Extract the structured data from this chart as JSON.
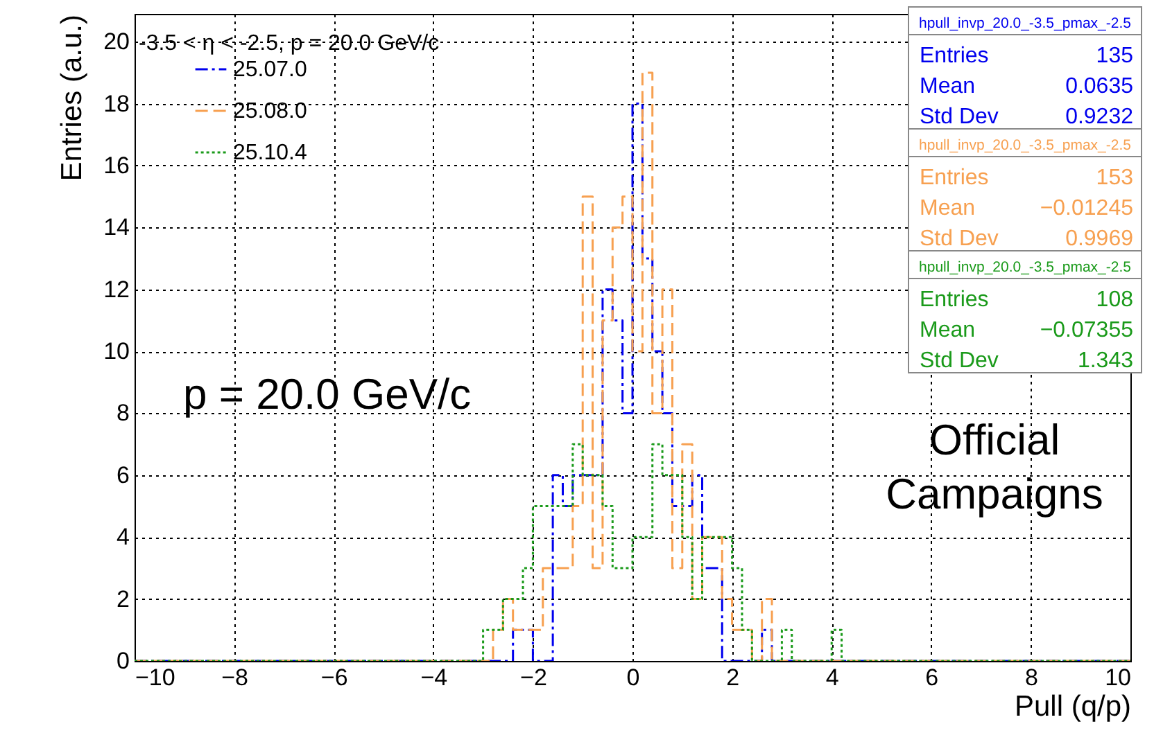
{
  "chart_data": {
    "type": "histogram",
    "title": "-3.5 < η < -2.5, p = 20.0 GeV/c",
    "xlabel": "Pull (q/p)",
    "ylabel": "Entries (a.u.)",
    "bins": [
      -10,
      -9.8,
      -9.6,
      -9.4,
      -9.2,
      -9,
      -8.8,
      -8.6,
      -8.4,
      -8.2,
      -8,
      -7.8,
      -7.6,
      -7.4,
      -7.2,
      -7,
      -6.8,
      -6.6,
      -6.4,
      -6.2,
      -6,
      -5.8,
      -5.6,
      -5.4,
      -5.2,
      -5,
      -4.8,
      -4.6,
      -4.4,
      -4.2,
      -4,
      -3.8,
      -3.6,
      -3.4,
      -3.2,
      -3,
      -2.8,
      -2.6,
      -2.4,
      -2.2,
      -2,
      -1.8,
      -1.6,
      -1.4,
      -1.2,
      -1,
      -0.8,
      -0.6,
      -0.4,
      -0.2,
      0,
      0.2,
      0.4,
      0.6,
      0.8,
      1,
      1.2,
      1.4,
      1.6,
      1.8,
      2,
      2.2,
      2.4,
      2.6,
      2.8,
      3,
      3.2,
      3.4,
      3.6,
      3.8,
      4,
      4.2,
      4.4,
      4.6,
      4.8,
      5,
      5.2,
      5.4,
      5.6,
      5.8,
      6,
      6.2,
      6.4,
      6.6,
      6.8,
      7,
      7.2,
      7.4,
      7.6,
      7.8,
      8,
      8.2,
      8.4,
      8.6,
      8.8,
      9,
      9.2,
      9.4,
      9.6,
      9.8,
      10
    ],
    "series": [
      {
        "name": "25.07.0",
        "color": "#0000ee",
        "line_style": "dashdot",
        "values": [
          0,
          0,
          0,
          0,
          0,
          0,
          0,
          0,
          0,
          0,
          0,
          0,
          0,
          0,
          0,
          0,
          0,
          0,
          0,
          0,
          0,
          0,
          0,
          0,
          0,
          0,
          0,
          0,
          0,
          0,
          0,
          0,
          0,
          0,
          0,
          0,
          0,
          0,
          1,
          1,
          0,
          0,
          6,
          5,
          6,
          6,
          6,
          12,
          11,
          8,
          18,
          13,
          10,
          8,
          5,
          5,
          6,
          3,
          3,
          0,
          0,
          0,
          0,
          1,
          0,
          0,
          0,
          0,
          0,
          0,
          0,
          0,
          0,
          0,
          0,
          0,
          0,
          0,
          0,
          0,
          0,
          0,
          0,
          0,
          0,
          0,
          0,
          0,
          0,
          0,
          0,
          0,
          0,
          0,
          0,
          0,
          0,
          0,
          0,
          0
        ]
      },
      {
        "name": "25.08.0",
        "color": "#f7a050",
        "line_style": "dashed",
        "values": [
          0,
          0,
          0,
          0,
          0,
          0,
          0,
          0,
          0,
          0,
          0,
          0,
          0,
          0,
          0,
          0,
          0,
          0,
          0,
          0,
          0,
          0,
          0,
          0,
          0,
          0,
          0,
          0,
          0,
          0,
          0,
          0,
          0,
          0,
          0,
          0,
          1,
          2,
          1,
          1,
          1,
          3,
          3,
          3,
          5,
          15,
          3,
          11,
          14,
          15,
          10,
          19,
          8,
          12,
          3,
          7,
          2,
          4,
          4,
          2,
          1,
          1,
          0,
          2,
          0,
          0,
          0,
          0,
          0,
          0,
          0,
          0,
          0,
          0,
          0,
          0,
          0,
          0,
          0,
          0,
          0,
          0,
          0,
          0,
          0,
          0,
          0,
          0,
          0,
          0,
          0,
          0,
          0,
          0,
          0,
          0,
          0,
          0,
          0,
          0
        ]
      },
      {
        "name": "25.10.4",
        "color": "#1a9a1a",
        "line_style": "dotted",
        "values": [
          0,
          0,
          0,
          0,
          0,
          0,
          0,
          0,
          0,
          0,
          0,
          0,
          0,
          0,
          0,
          0,
          0,
          0,
          0,
          0,
          0,
          0,
          0,
          0,
          0,
          0,
          0,
          0,
          0,
          0,
          0,
          0,
          0,
          0,
          0,
          1,
          1,
          2,
          2,
          3,
          5,
          5,
          5,
          5,
          7,
          6,
          6,
          5,
          3,
          3,
          4,
          4,
          7,
          6,
          6,
          4,
          2,
          4,
          4,
          4,
          3,
          1,
          0,
          0,
          0,
          1,
          0,
          0,
          0,
          0,
          1,
          0,
          0,
          0,
          0,
          0,
          0,
          0,
          0,
          0,
          0,
          0,
          0,
          0,
          0,
          0,
          0,
          0,
          0,
          0,
          0,
          0,
          0,
          0,
          0,
          0,
          0,
          0,
          0,
          0
        ]
      }
    ],
    "xlim": [
      -10,
      10
    ],
    "ylim": [
      0,
      20.9
    ],
    "xticks": [
      -10,
      -8,
      -6,
      -4,
      -2,
      0,
      2,
      4,
      6,
      8,
      10
    ],
    "yticks": [
      0,
      2,
      4,
      6,
      8,
      10,
      12,
      14,
      16,
      18,
      20
    ],
    "grid": true,
    "legend": "top left",
    "annotations": [
      "p = 20.0 GeV/c",
      "Official",
      "Campaigns",
      "hpull_invp_20.0_-3.5_pmax_-2.5",
      "Entries",
      "135",
      "Mean",
      "0.0635",
      "Std Dev",
      "0.9232",
      "hpull_invp_20.0_-3.5_pmax_-2.5",
      "Entries",
      "153",
      "Mean",
      "−0.01245",
      "Std Dev",
      "0.9969",
      "hpull_invp_20.0_-3.5_pmax_-2.5",
      "Entries",
      "108",
      "Mean",
      "−0.07355",
      "Std Dev",
      "1.343"
    ]
  }
}
